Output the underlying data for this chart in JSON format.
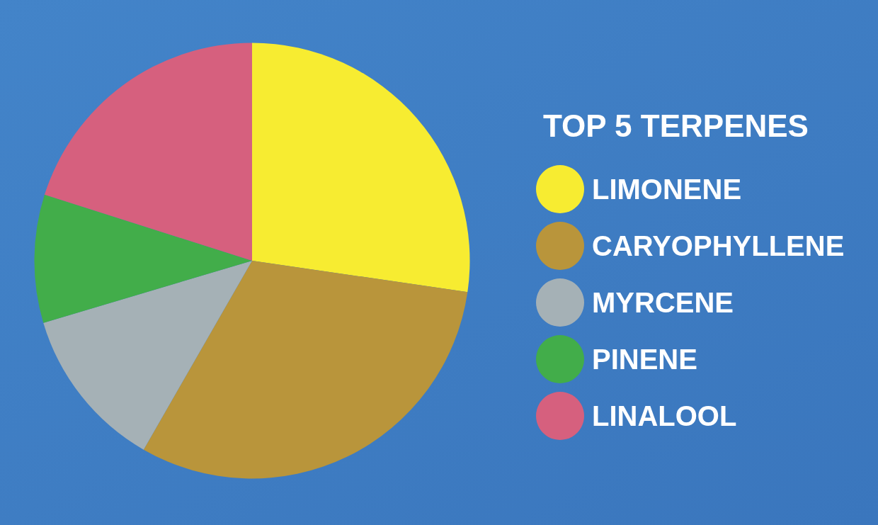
{
  "chart_data": {
    "type": "pie",
    "legend_title": "TOP 5 TERPENES",
    "categories": [
      "LIMONENE",
      "CARYOPHYLLENE",
      "MYRCENE",
      "PINENE",
      "LINALOOL"
    ],
    "values": [
      27.3,
      31.0,
      12.1,
      9.5,
      20.1
    ],
    "colors": [
      "#f7ec31",
      "#b9953b",
      "#a5b1b6",
      "#42ad4a",
      "#d6607e"
    ],
    "legend": "right"
  }
}
